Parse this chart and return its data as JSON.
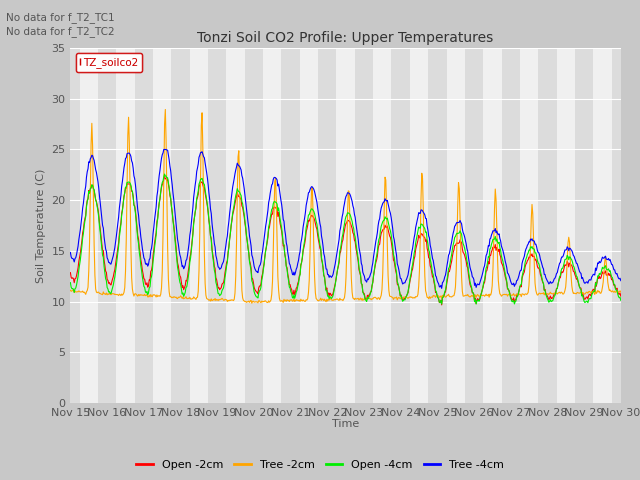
{
  "title": "Tonzi Soil CO2 Profile: Upper Temperatures",
  "ylabel": "Soil Temperature (C)",
  "xlabel": "Time",
  "no_data_text": [
    "No data for f_T2_TC1",
    "No data for f_T2_TC2"
  ],
  "legend_label": "TZ_soilco2",
  "ylim": [
    0,
    35
  ],
  "yticks": [
    0,
    5,
    10,
    15,
    20,
    25,
    30,
    35
  ],
  "line_colors": {
    "open_2cm": "#ff0000",
    "tree_2cm": "#ffa500",
    "open_4cm": "#00ee00",
    "tree_4cm": "#0000ff"
  },
  "legend_labels": [
    "Open -2cm",
    "Tree -2cm",
    "Open -4cm",
    "Tree -4cm"
  ],
  "fig_bg_color": "#c8c8c8",
  "plot_bg_color": "#e8e8e8",
  "band_light": "#f0f0f0",
  "band_dark": "#dcdcdc",
  "grid_color": "#ffffff"
}
